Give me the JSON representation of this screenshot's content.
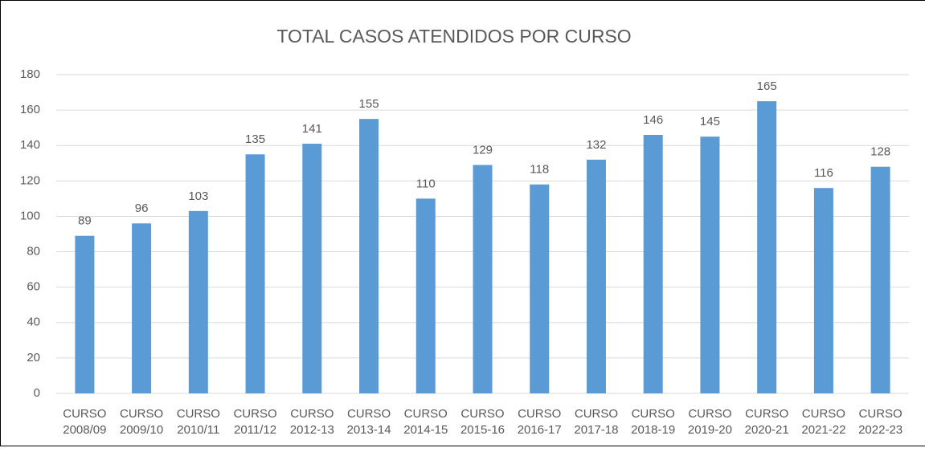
{
  "chart_data": {
    "type": "bar",
    "title": "TOTAL CASOS ATENDIDOS POR CURSO",
    "categories": [
      "CURSO 2008/09",
      "CURSO 2009/10",
      "CURSO 2010/11",
      "CURSO 2011/12",
      "CURSO 2012-13",
      "CURSO 2013-14",
      "CURSO 2014-15",
      "CURSO 2015-16",
      "CURSO 2016-17",
      "CURSO 2017-18",
      "CURSO 2018-19",
      "CURSO 2019-20",
      "CURSO 2020-21",
      "CURSO 2021-22",
      "CURSO 2022-23"
    ],
    "values": [
      89,
      96,
      103,
      135,
      141,
      155,
      110,
      129,
      118,
      132,
      146,
      145,
      165,
      116,
      128
    ],
    "color": "#5b9bd5",
    "ylim": [
      0,
      180
    ],
    "yticks": [
      0,
      20,
      40,
      60,
      80,
      100,
      120,
      140,
      160,
      180
    ],
    "grid": true
  }
}
